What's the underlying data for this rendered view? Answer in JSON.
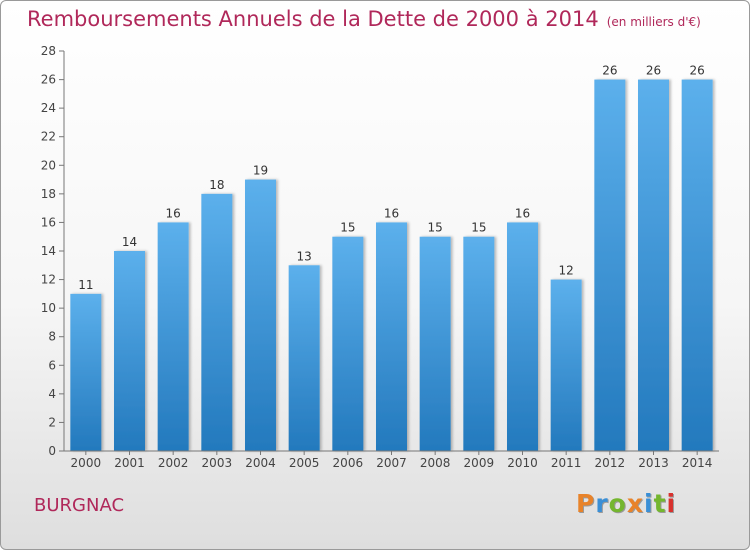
{
  "header": {
    "title": "Remboursements Annuels de la Dette de 2000 à 2014",
    "unit": "(en milliers d'€)"
  },
  "footer": {
    "place": "BURGNAC",
    "brand": "Proxiti",
    "brand_colors": [
      "#e8832a",
      "#3a8fd6",
      "#74b62e",
      "#e8832a",
      "#3a8fd6",
      "#74b62e",
      "#d8312d"
    ]
  },
  "colors": {
    "bar_light": "#5cb0ec",
    "bar_dark": "#2379bd",
    "title": "#b0285a"
  },
  "chart_data": {
    "type": "bar",
    "title": "Remboursements Annuels de la Dette de 2000 à 2014",
    "subtitle": "(en milliers d'€)",
    "categories": [
      "2000",
      "2001",
      "2002",
      "2003",
      "2004",
      "2005",
      "2006",
      "2007",
      "2008",
      "2009",
      "2010",
      "2011",
      "2012",
      "2013",
      "2014"
    ],
    "values": [
      11,
      14,
      16,
      18,
      19,
      13,
      15,
      16,
      15,
      15,
      16,
      12,
      26,
      26,
      26
    ],
    "ylim": [
      0,
      28
    ],
    "yticks": [
      0,
      2,
      4,
      6,
      8,
      10,
      12,
      14,
      16,
      18,
      20,
      22,
      24,
      26,
      28
    ],
    "grid": false,
    "data_labels": true
  }
}
